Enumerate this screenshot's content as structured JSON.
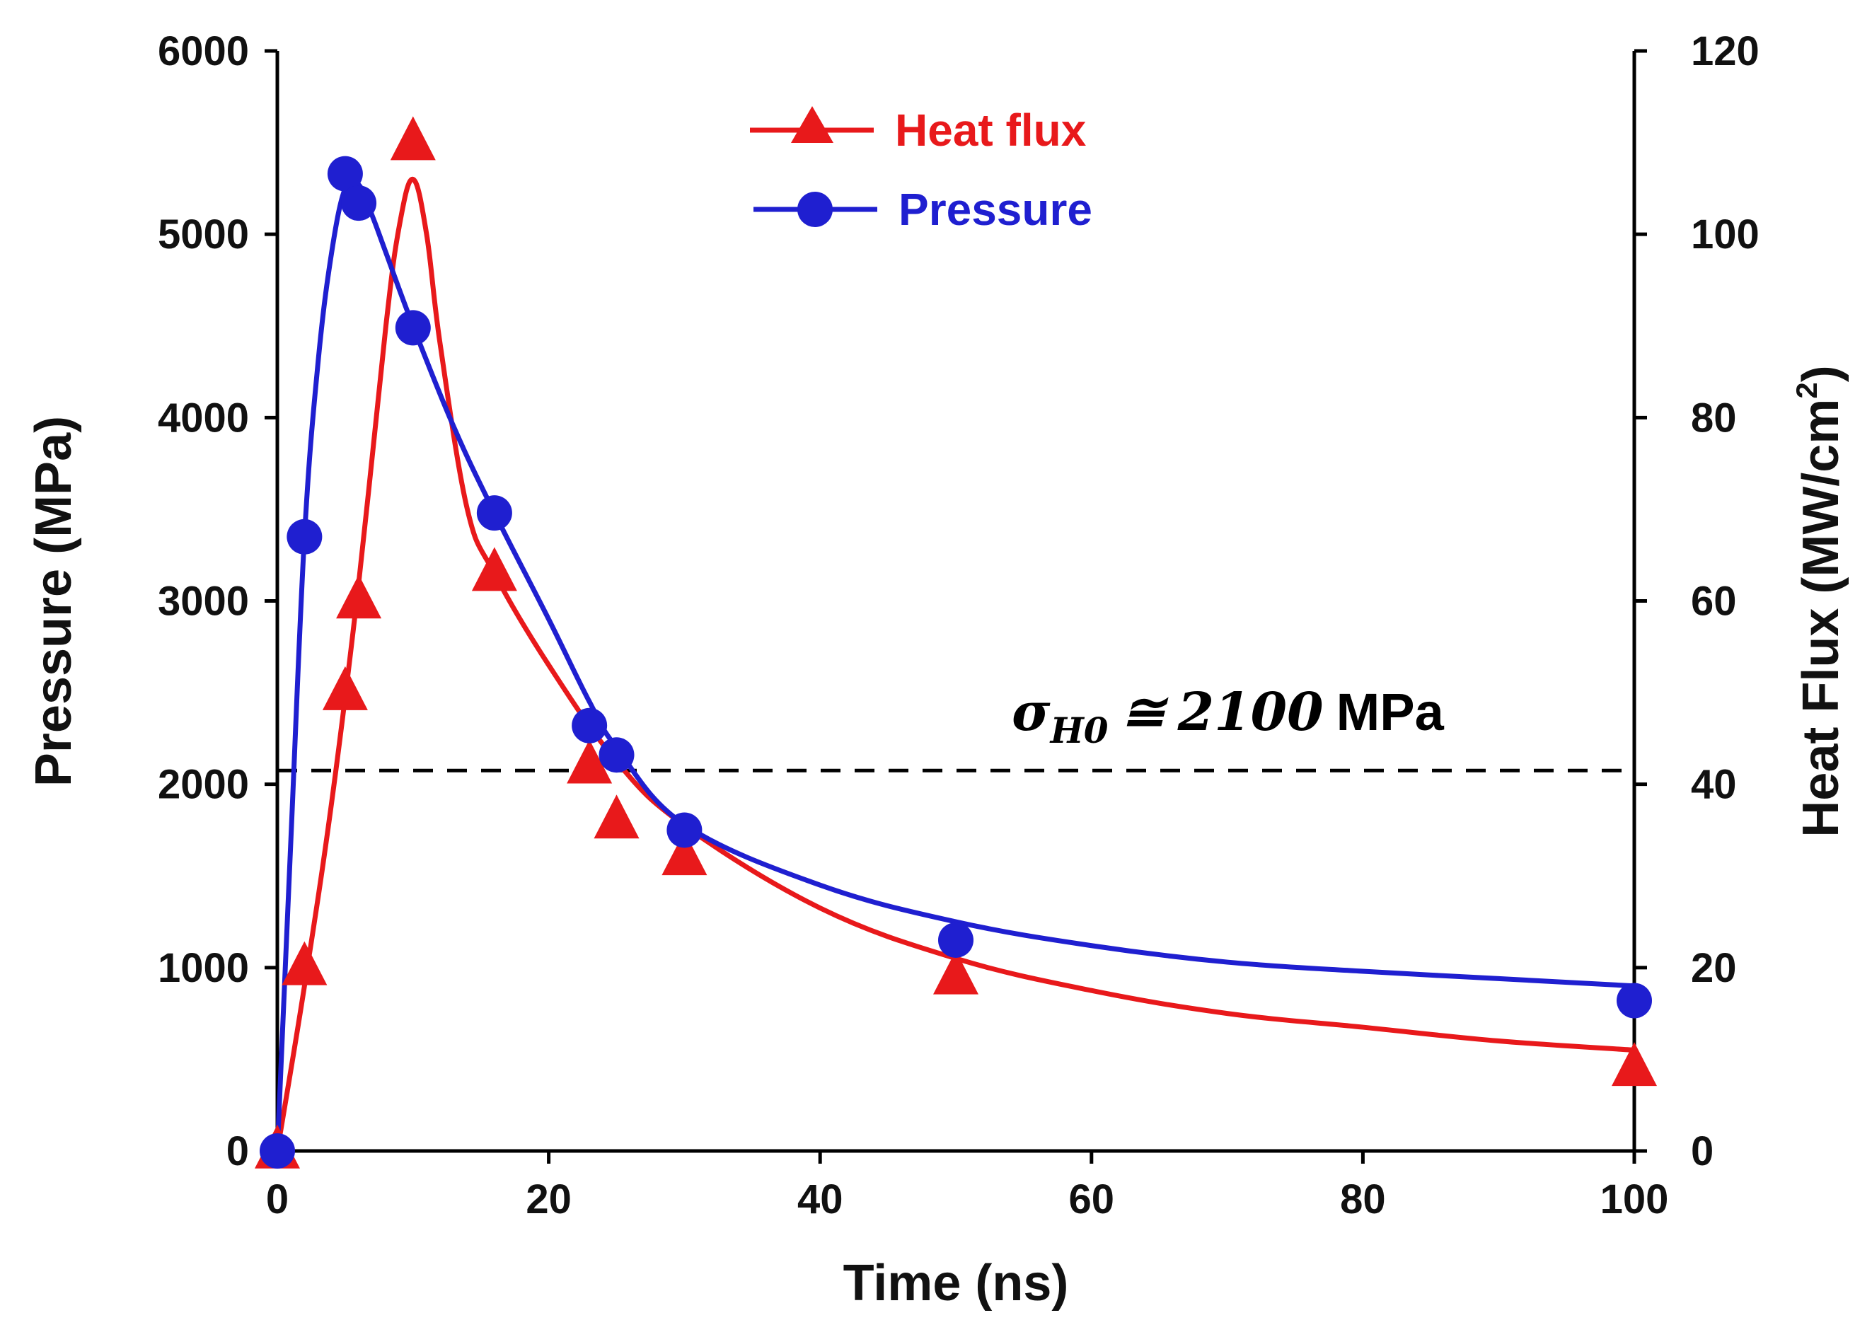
{
  "chart_data": {
    "type": "line",
    "title": "",
    "xlabel": "Time (ns)",
    "ylabel_left": "Pressure (MPa)",
    "ylabel_right_prefix": "Heat Flux (MW/cm",
    "ylabel_right_sup": "2",
    "ylabel_right_suffix": ")",
    "xlim": [
      0,
      100
    ],
    "ylim_left": [
      0,
      6000
    ],
    "ylim_right": [
      0,
      120
    ],
    "xticks": [
      "0",
      "20",
      "40",
      "60",
      "80",
      "100"
    ],
    "yticks_left": [
      "0",
      "1000",
      "2000",
      "3000",
      "4000",
      "5000",
      "6000"
    ],
    "yticks_right": [
      "0",
      "20",
      "40",
      "60",
      "80",
      "100",
      "120"
    ],
    "grid": false,
    "legend_position": "top-center",
    "series": [
      {
        "name": "Heat flux",
        "axis": "right",
        "color": "#e8191b",
        "marker": "triangle",
        "points": [
          [
            0,
            0
          ],
          [
            2,
            20
          ],
          [
            5,
            50
          ],
          [
            6,
            60
          ],
          [
            10,
            110
          ],
          [
            16,
            63
          ],
          [
            23,
            42
          ],
          [
            25,
            36
          ],
          [
            30,
            32
          ],
          [
            50,
            19
          ],
          [
            100,
            9
          ]
        ],
        "fit": [
          [
            0,
            0
          ],
          [
            2,
            18
          ],
          [
            4,
            38
          ],
          [
            6,
            62
          ],
          [
            8,
            90
          ],
          [
            9,
            101
          ],
          [
            10,
            106
          ],
          [
            11,
            100
          ],
          [
            12,
            88
          ],
          [
            14,
            70
          ],
          [
            16,
            63
          ],
          [
            20,
            53
          ],
          [
            25,
            42.5
          ],
          [
            30,
            35.5
          ],
          [
            40,
            26.5
          ],
          [
            50,
            21
          ],
          [
            60,
            17.5
          ],
          [
            70,
            15
          ],
          [
            80,
            13.5
          ],
          [
            90,
            12
          ],
          [
            100,
            11
          ]
        ]
      },
      {
        "name": "Pressure",
        "axis": "left",
        "color": "#1f1fd0",
        "marker": "circle",
        "points": [
          [
            0,
            0
          ],
          [
            2,
            3350
          ],
          [
            5,
            5330
          ],
          [
            6,
            5170
          ],
          [
            10,
            4490
          ],
          [
            16,
            3480
          ],
          [
            23,
            2320
          ],
          [
            25,
            2160
          ],
          [
            30,
            1750
          ],
          [
            50,
            1150
          ],
          [
            100,
            820
          ]
        ],
        "fit": [
          [
            0,
            0
          ],
          [
            1,
            1700
          ],
          [
            2,
            3350
          ],
          [
            3,
            4300
          ],
          [
            4,
            4900
          ],
          [
            5,
            5250
          ],
          [
            6,
            5270
          ],
          [
            7,
            5100
          ],
          [
            8,
            4900
          ],
          [
            10,
            4500
          ],
          [
            13,
            3950
          ],
          [
            16,
            3480
          ],
          [
            20,
            2900
          ],
          [
            23,
            2450
          ],
          [
            25,
            2200
          ],
          [
            30,
            1780
          ],
          [
            40,
            1450
          ],
          [
            50,
            1250
          ],
          [
            60,
            1120
          ],
          [
            70,
            1030
          ],
          [
            80,
            980
          ],
          [
            90,
            940
          ],
          [
            100,
            900
          ]
        ]
      }
    ],
    "annotations": [
      {
        "text_symbol": "σ",
        "text_subscript": "H0",
        "text_relation": "≅",
        "text_value": "2100",
        "text_unit": "MPa",
        "reference_line_y": 2075,
        "line_style": "dashed"
      }
    ]
  }
}
